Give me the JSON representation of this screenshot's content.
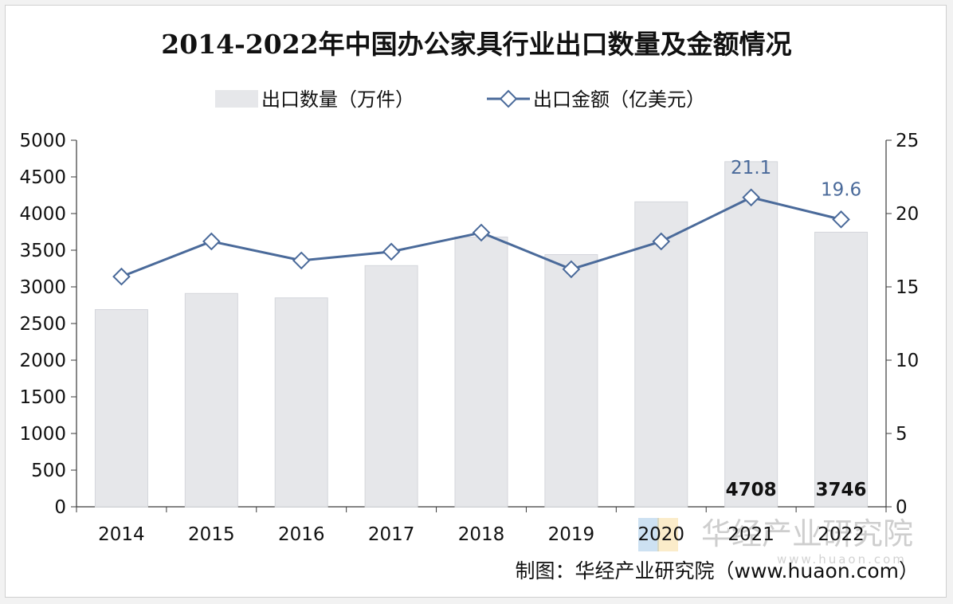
{
  "chart_data": {
    "type": "bar",
    "title": "2014-2022年中国办公家具行业出口数量及金额情况",
    "categories": [
      "2014",
      "2015",
      "2016",
      "2017",
      "2018",
      "2019",
      "2020",
      "2021",
      "2022"
    ],
    "series": [
      {
        "name": "出口数量（万件）",
        "type": "bar",
        "axis": "left",
        "values": [
          2690,
          2910,
          2850,
          3290,
          3680,
          3440,
          4160,
          4708,
          3746
        ],
        "data_labels": {
          "7": "4708",
          "8": "3746"
        }
      },
      {
        "name": "出口金额（亿美元）",
        "type": "line",
        "axis": "right",
        "values": [
          15.7,
          18.1,
          16.8,
          17.4,
          18.7,
          16.2,
          18.1,
          21.1,
          19.6
        ],
        "data_labels": {
          "7": "21.1",
          "8": "19.6"
        }
      }
    ],
    "y_left": {
      "min": 0,
      "max": 5000,
      "step": 500
    },
    "y_right": {
      "min": 0,
      "max": 25,
      "step": 5
    },
    "legend_position": "top",
    "grid": false
  },
  "colors": {
    "bar": "#e6e7ea",
    "bar_edge": "#d4d6db",
    "line": "#4a6a9a",
    "marker_fill": "#ffffff",
    "value_label": "#4a6a9a",
    "axis": "#3a3a3a",
    "text": "#111111"
  },
  "source_note": "制图：华经产业研究院（www.huaon.com）",
  "watermark": "华经产业研究院",
  "watermark_url": "www.huaon.com"
}
